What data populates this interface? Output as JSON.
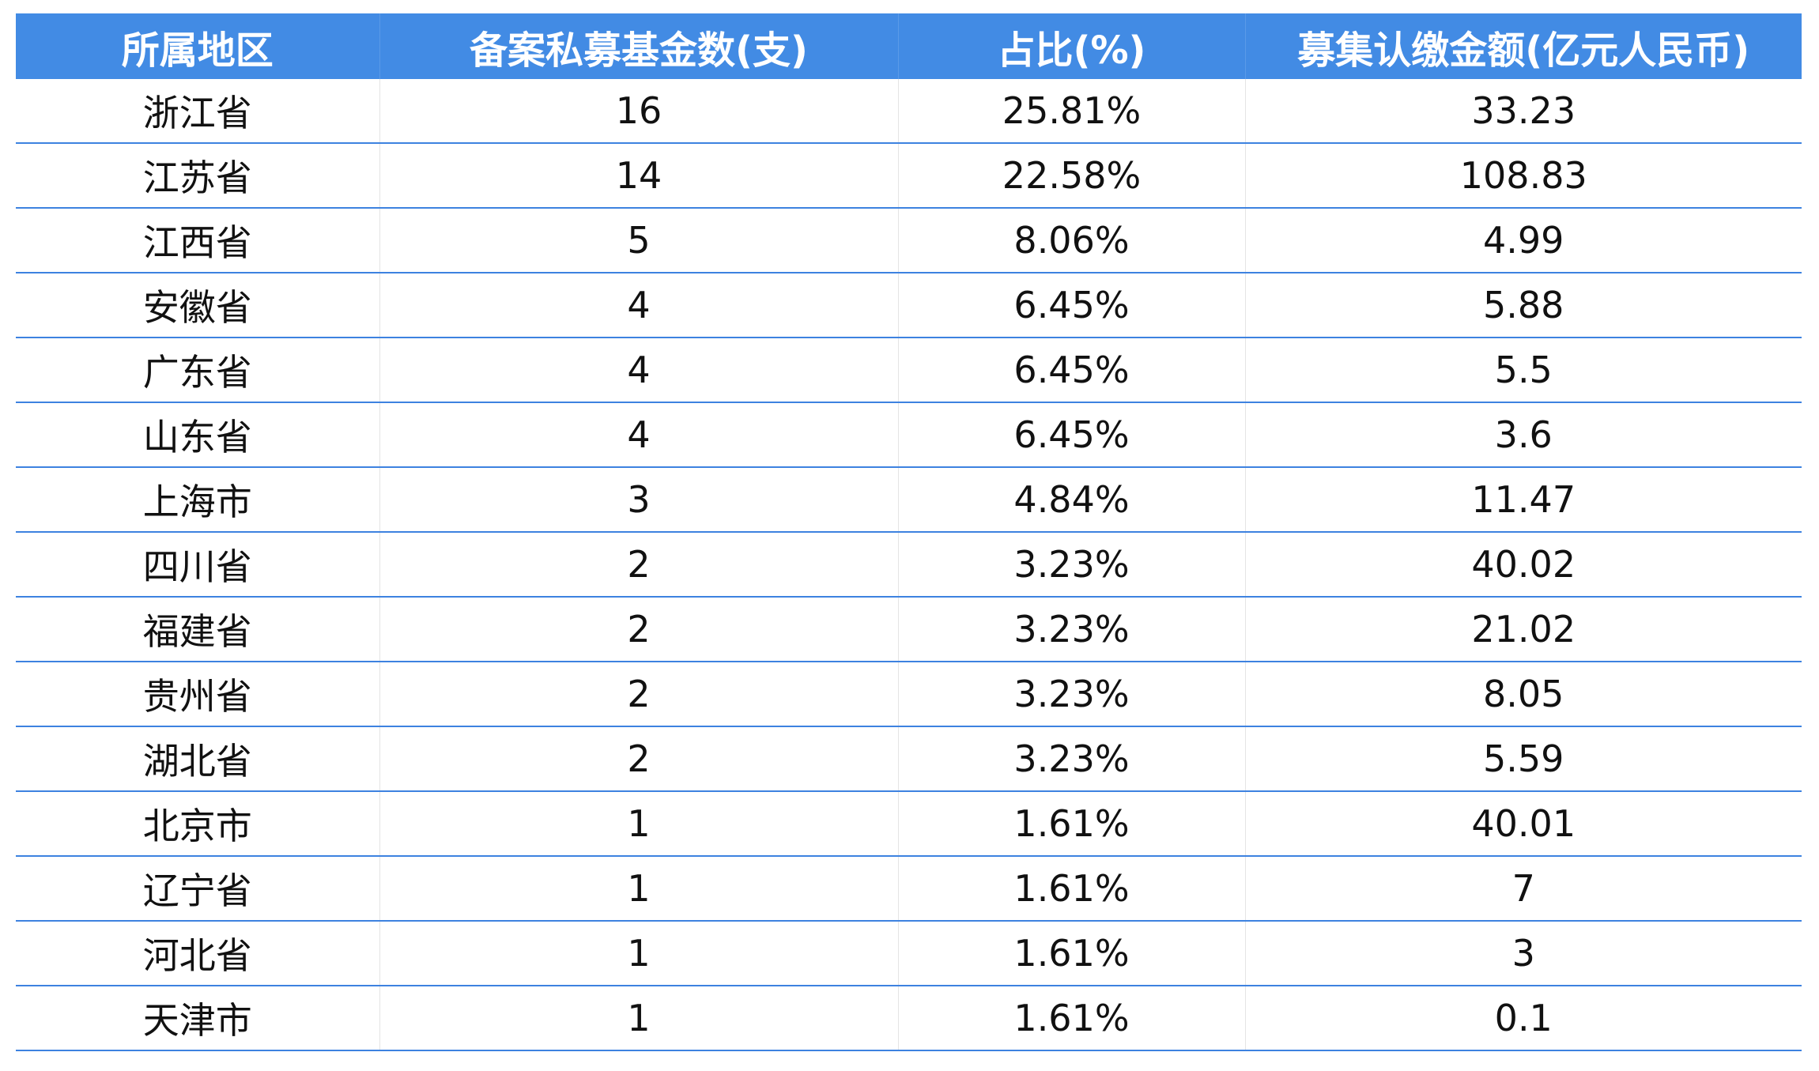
{
  "table": {
    "headers": [
      "所属地区",
      "备案私募基金数(支)",
      "占比(%)",
      "募集认缴金额(亿元人民币)"
    ],
    "rows": [
      [
        "浙江省",
        "16",
        "25.81%",
        "33.23"
      ],
      [
        "江苏省",
        "14",
        "22.58%",
        "108.83"
      ],
      [
        "江西省",
        "5",
        "8.06%",
        "4.99"
      ],
      [
        "安徽省",
        "4",
        "6.45%",
        "5.88"
      ],
      [
        "广东省",
        "4",
        "6.45%",
        "5.5"
      ],
      [
        "山东省",
        "4",
        "6.45%",
        "3.6"
      ],
      [
        "上海市",
        "3",
        "4.84%",
        "11.47"
      ],
      [
        "四川省",
        "2",
        "3.23%",
        "40.02"
      ],
      [
        "福建省",
        "2",
        "3.23%",
        "21.02"
      ],
      [
        "贵州省",
        "2",
        "3.23%",
        "8.05"
      ],
      [
        "湖北省",
        "2",
        "3.23%",
        "5.59"
      ],
      [
        "北京市",
        "1",
        "1.61%",
        "40.01"
      ],
      [
        "辽宁省",
        "1",
        "1.61%",
        "7"
      ],
      [
        "河北省",
        "1",
        "1.61%",
        "3"
      ],
      [
        "天津市",
        "1",
        "1.61%",
        "0.1"
      ]
    ]
  },
  "colors": {
    "header_bg": "#428be4",
    "row_divider": "#3d82e0"
  }
}
